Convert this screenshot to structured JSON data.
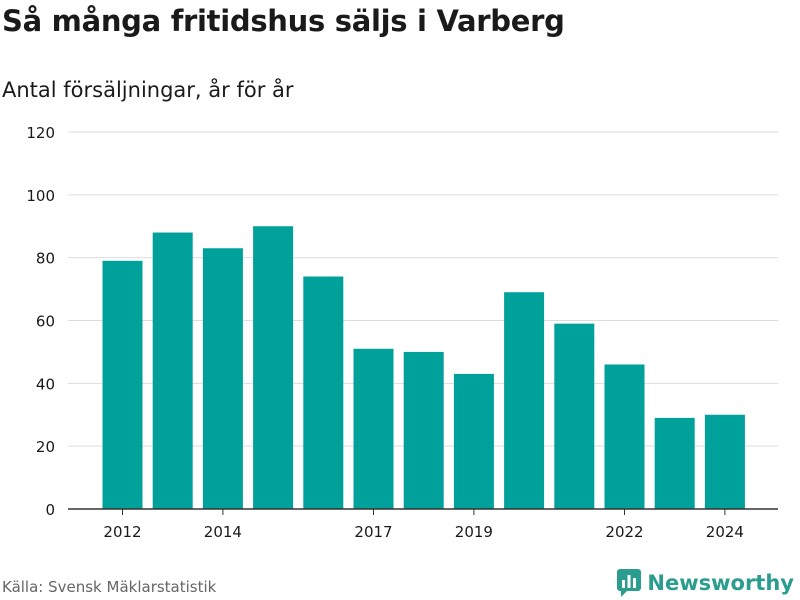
{
  "header": {
    "title": "Så många fritidshus säljs i Varberg",
    "subtitle": "Antal försäljningar, år för år"
  },
  "footer": {
    "source": "Källa: Svensk Mäklarstatistik",
    "brand": "Newsworthy",
    "brand_icon": "bar-chart-icon"
  },
  "colors": {
    "bar": "#00a19a",
    "grid": "#dddddd",
    "axis": "#333333",
    "brand": "#2a9d8f"
  },
  "chart_data": {
    "type": "bar",
    "categories": [
      2012,
      2013,
      2014,
      2015,
      2016,
      2017,
      2018,
      2019,
      2020,
      2021,
      2022,
      2023,
      2024
    ],
    "values": [
      79,
      88,
      83,
      90,
      74,
      51,
      50,
      43,
      69,
      59,
      46,
      29,
      30
    ],
    "x_tick_labels": [
      "2012",
      "2014",
      "2017",
      "2019",
      "2022",
      "2024"
    ],
    "y_ticks": [
      0,
      20,
      40,
      60,
      80,
      100,
      120
    ],
    "ylim": [
      0,
      120
    ],
    "grid": true,
    "legend": "none"
  }
}
